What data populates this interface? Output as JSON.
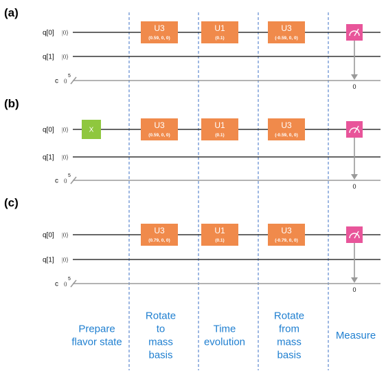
{
  "colors": {
    "u_gate": "#f08a4b",
    "x_gate": "#8fc73e",
    "measure_gate": "#e8559a",
    "qubit_wire": "#333333",
    "classical_wire": "#9a9a9a",
    "divider": "#3b6fc5",
    "stage_text": "#1f7fd0"
  },
  "panels": [
    {
      "label": "(a)",
      "registers": {
        "q0": "q[0]",
        "q1": "q[1]",
        "c": "c"
      },
      "ket": "|0⟩",
      "c_init": "0",
      "c_width": "5",
      "x_gate": null,
      "gates": [
        {
          "name": "U3",
          "param": "(0.59, 0, 0)"
        },
        {
          "name": "U1",
          "param": "(0.1)"
        },
        {
          "name": "U3",
          "param": "(-0.59, 0, 0)"
        }
      ],
      "measure_bit": "0"
    },
    {
      "label": "(b)",
      "registers": {
        "q0": "q[0]",
        "q1": "q[1]",
        "c": "c"
      },
      "ket": "|0⟩",
      "c_init": "0",
      "c_width": "5",
      "x_gate": "X",
      "gates": [
        {
          "name": "U3",
          "param": "(0.59, 0, 0)"
        },
        {
          "name": "U1",
          "param": "(0.1)"
        },
        {
          "name": "U3",
          "param": "(-0.59, 0, 0)"
        }
      ],
      "measure_bit": "0"
    },
    {
      "label": "(c)",
      "registers": {
        "q0": "q[0]",
        "q1": "q[1]",
        "c": "c"
      },
      "ket": "|0⟩",
      "c_init": "0",
      "c_width": "5",
      "x_gate": null,
      "gates": [
        {
          "name": "U3",
          "param": "(0.79, 0, 0)"
        },
        {
          "name": "U1",
          "param": "(0.1)"
        },
        {
          "name": "U3",
          "param": "(-0.79, 0, 0)"
        }
      ],
      "measure_bit": "0"
    }
  ],
  "stages": [
    {
      "lines": [
        "Prepare",
        "flavor state"
      ]
    },
    {
      "lines": [
        "Rotate",
        "to",
        "mass",
        "basis"
      ]
    },
    {
      "lines": [
        "Time",
        "evolution"
      ]
    },
    {
      "lines": [
        "Rotate",
        "from",
        "mass",
        "basis"
      ]
    },
    {
      "lines": [
        "Measure"
      ]
    }
  ]
}
